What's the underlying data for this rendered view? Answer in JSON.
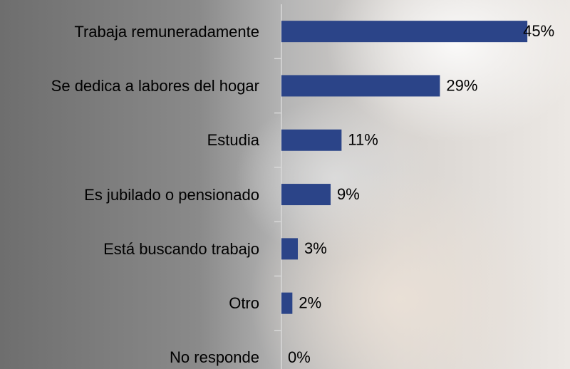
{
  "chart_data": {
    "type": "bar",
    "orientation": "horizontal",
    "categories": [
      "Trabaja remuneradamente",
      "Se dedica a labores del hogar",
      "Estudia",
      "Es jubilado o pensionado",
      "Está buscando trabajo",
      "Otro",
      "No responde"
    ],
    "values": [
      45,
      29,
      11,
      9,
      3,
      2,
      0
    ],
    "value_labels": [
      "45%",
      "29%",
      "11%",
      "9%",
      "3%",
      "2%",
      "0%"
    ],
    "color": "#2b4488"
  }
}
